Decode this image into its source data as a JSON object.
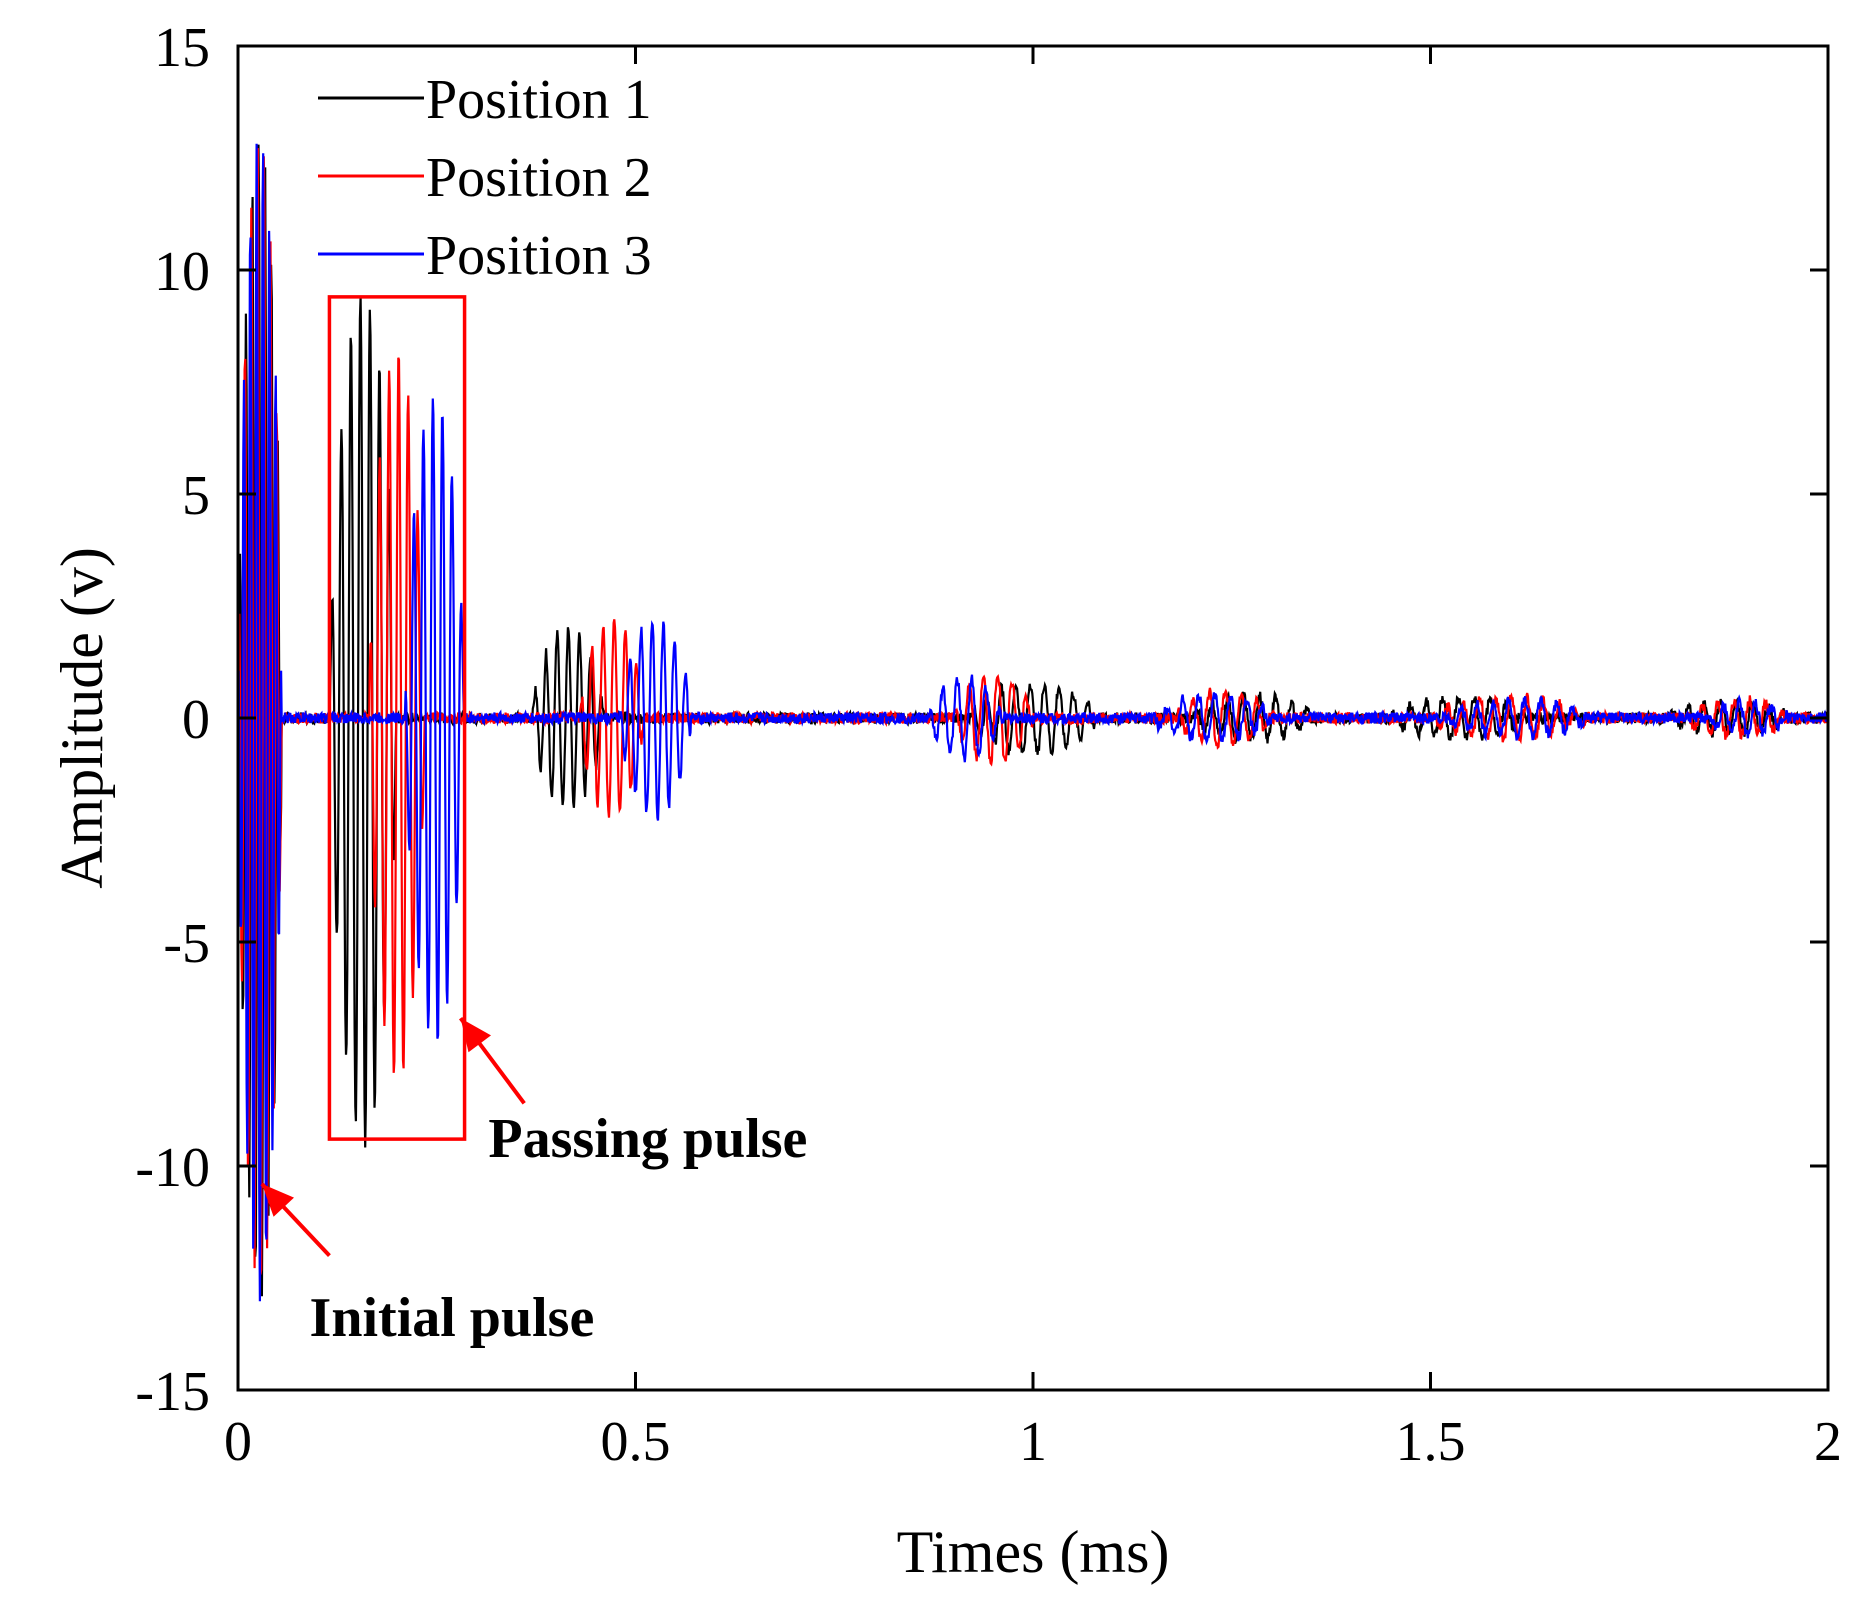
{
  "chart_data": {
    "type": "line",
    "title": "",
    "xlabel": "Times (ms)",
    "ylabel": "Amplitude (v)",
    "xlim": [
      0,
      2
    ],
    "ylim": [
      -15,
      15
    ],
    "grid": false,
    "legend_position": "top-left",
    "x_ticks": [
      {
        "value": 0,
        "label": "0"
      },
      {
        "value": 0.5,
        "label": "0.5"
      },
      {
        "value": 1,
        "label": "1"
      },
      {
        "value": 1.5,
        "label": "1.5"
      },
      {
        "value": 2,
        "label": "2"
      }
    ],
    "y_ticks": [
      {
        "value": 15,
        "label": "15"
      },
      {
        "value": 10,
        "label": "10"
      },
      {
        "value": 5,
        "label": "5"
      },
      {
        "value": 0,
        "label": "0"
      },
      {
        "value": -5,
        "label": "-5"
      },
      {
        "value": -10,
        "label": "-10"
      },
      {
        "value": -15,
        "label": "-15"
      }
    ],
    "series": [
      {
        "name": "Position 1",
        "color": "#000000",
        "bursts": [
          {
            "start": 0.0,
            "end": 0.055,
            "amp": 13.0,
            "period": 0.008
          },
          {
            "start": 0.115,
            "end": 0.2,
            "amp": 9.5,
            "period": 0.012
          },
          {
            "start": 0.37,
            "end": 0.46,
            "amp": 2.0,
            "period": 0.014
          },
          {
            "start": 0.92,
            "end": 1.08,
            "amp": 0.8,
            "period": 0.018
          },
          {
            "start": 1.2,
            "end": 1.35,
            "amp": 0.5,
            "period": 0.02
          },
          {
            "start": 1.45,
            "end": 1.62,
            "amp": 0.45,
            "period": 0.02
          },
          {
            "start": 1.8,
            "end": 1.95,
            "amp": 0.35,
            "period": 0.02
          }
        ]
      },
      {
        "name": "Position 2",
        "color": "#ff0000",
        "bursts": [
          {
            "start": 0.0,
            "end": 0.055,
            "amp": 13.0,
            "period": 0.008
          },
          {
            "start": 0.165,
            "end": 0.235,
            "amp": 8.2,
            "period": 0.012
          },
          {
            "start": 0.43,
            "end": 0.51,
            "amp": 2.2,
            "period": 0.014
          },
          {
            "start": 0.9,
            "end": 1.0,
            "amp": 1.0,
            "period": 0.018
          },
          {
            "start": 1.18,
            "end": 1.3,
            "amp": 0.6,
            "period": 0.02
          },
          {
            "start": 1.5,
            "end": 1.7,
            "amp": 0.45,
            "period": 0.02
          },
          {
            "start": 1.82,
            "end": 1.95,
            "amp": 0.4,
            "period": 0.02
          }
        ]
      },
      {
        "name": "Position 3",
        "color": "#0000ff",
        "bursts": [
          {
            "start": 0.0,
            "end": 0.055,
            "amp": 13.0,
            "period": 0.008
          },
          {
            "start": 0.21,
            "end": 0.285,
            "amp": 7.3,
            "period": 0.012
          },
          {
            "start": 0.48,
            "end": 0.57,
            "amp": 2.2,
            "period": 0.014
          },
          {
            "start": 0.87,
            "end": 0.96,
            "amp": 0.9,
            "period": 0.018
          },
          {
            "start": 1.15,
            "end": 1.3,
            "amp": 0.5,
            "period": 0.02
          },
          {
            "start": 1.52,
            "end": 1.7,
            "amp": 0.4,
            "period": 0.02
          },
          {
            "start": 1.85,
            "end": 1.95,
            "amp": 0.35,
            "period": 0.02
          }
        ]
      }
    ],
    "highlight_box": {
      "x0": 0.115,
      "x1": 0.285,
      "y0": -9.4,
      "y1": 9.4,
      "color": "#ff0000"
    },
    "annotations": [
      {
        "text": "Passing pulse",
        "arrow_to": {
          "x": 0.28,
          "y": -6.7
        },
        "arrow_from": {
          "x": 0.36,
          "y": -8.6
        },
        "label_at": {
          "x": 0.315,
          "y": -9.8
        },
        "color": "#ff0000"
      },
      {
        "text": "Initial pulse",
        "arrow_to": {
          "x": 0.03,
          "y": -10.4
        },
        "arrow_from": {
          "x": 0.115,
          "y": -12.0
        },
        "label_at": {
          "x": 0.09,
          "y": -13.8
        },
        "color": "#ff0000"
      }
    ]
  }
}
